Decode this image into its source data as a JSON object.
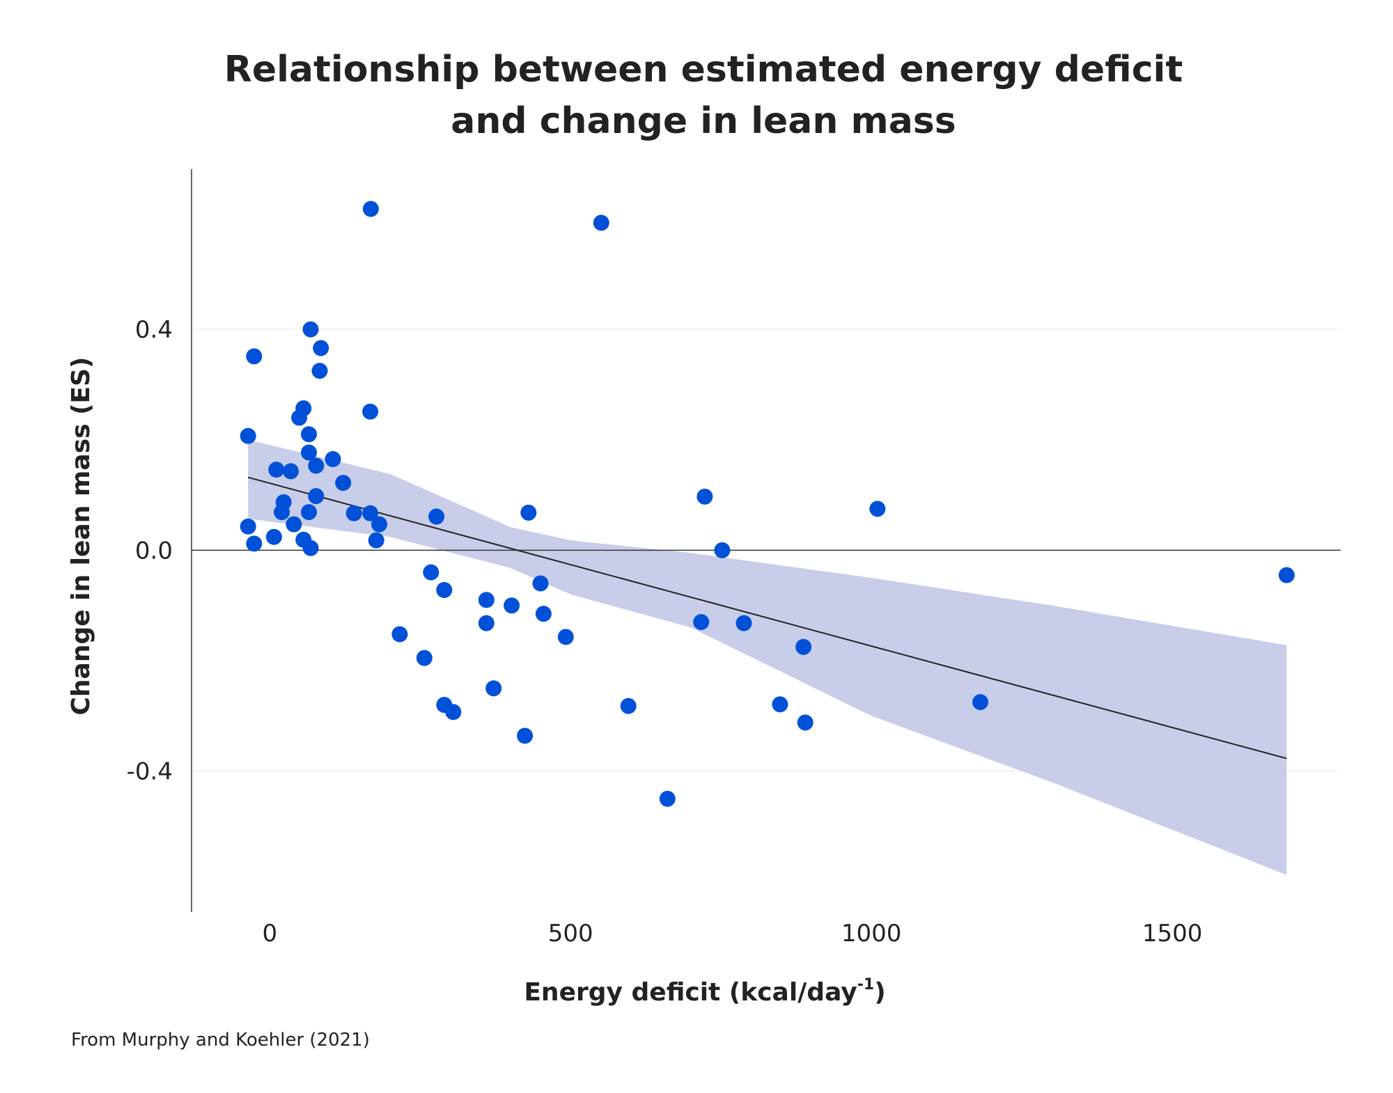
{
  "chart_data": {
    "type": "scatter",
    "title_line1": "Relationship between estimated energy deficit",
    "title_line2": "and change in lean mass",
    "xlabel": "Energy deficit (kcal/day",
    "xlabel_sup": "-1",
    "xlabel_close": ")",
    "ylabel": "Change in lean mass (ES)",
    "source": "From Murphy and Koehler (2021)",
    "xlim": [
      -130,
      1780
    ],
    "ylim": [
      -0.655,
      0.69
    ],
    "x_ticks": [
      0,
      500,
      1000,
      1500
    ],
    "x_tick_labels": [
      "0",
      "500",
      "1000",
      "1500"
    ],
    "y_ticks": [
      0.4,
      0.0,
      -0.4
    ],
    "y_tick_labels": [
      "0.4",
      "0.0",
      "-0.4"
    ],
    "grid": "horizontal",
    "colors": {
      "points": "#0050d8",
      "band": "#c8cdea",
      "line": "#222222",
      "axis": "#333333",
      "grid": "#eeeeee"
    },
    "regression": {
      "x": [
        -36,
        1690
      ],
      "y": [
        0.132,
        -0.377
      ]
    },
    "confidence_band": {
      "x": [
        -36,
        200,
        400,
        500,
        700,
        1000,
        1300,
        1690
      ],
      "upper": [
        0.2,
        0.138,
        0.042,
        0.018,
        -0.005,
        -0.05,
        -0.1,
        -0.172
      ],
      "lower": [
        0.057,
        0.024,
        -0.032,
        -0.08,
        -0.14,
        -0.3,
        -0.42,
        -0.588
      ]
    },
    "points": [
      {
        "x": 168,
        "y": 0.618
      },
      {
        "x": 551,
        "y": 0.593
      },
      {
        "x": 68,
        "y": 0.4
      },
      {
        "x": 85,
        "y": 0.366
      },
      {
        "x": -26,
        "y": 0.351
      },
      {
        "x": 83,
        "y": 0.325
      },
      {
        "x": 56,
        "y": 0.257
      },
      {
        "x": 167,
        "y": 0.251
      },
      {
        "x": 49,
        "y": 0.24
      },
      {
        "x": 65,
        "y": 0.21
      },
      {
        "x": -36,
        "y": 0.207
      },
      {
        "x": 65,
        "y": 0.177
      },
      {
        "x": 105,
        "y": 0.165
      },
      {
        "x": 77,
        "y": 0.153
      },
      {
        "x": 11,
        "y": 0.146
      },
      {
        "x": 35,
        "y": 0.143
      },
      {
        "x": 122,
        "y": 0.122
      },
      {
        "x": 77,
        "y": 0.098
      },
      {
        "x": 23,
        "y": 0.087
      },
      {
        "x": 20,
        "y": 0.069
      },
      {
        "x": 65,
        "y": 0.069
      },
      {
        "x": 140,
        "y": 0.067
      },
      {
        "x": 167,
        "y": 0.067
      },
      {
        "x": 430,
        "y": 0.068
      },
      {
        "x": 277,
        "y": 0.061
      },
      {
        "x": 182,
        "y": 0.047
      },
      {
        "x": 40,
        "y": 0.047
      },
      {
        "x": -36,
        "y": 0.043
      },
      {
        "x": 7,
        "y": 0.024
      },
      {
        "x": 56,
        "y": 0.019
      },
      {
        "x": 177,
        "y": 0.018
      },
      {
        "x": -26,
        "y": 0.012
      },
      {
        "x": 68,
        "y": 0.004
      },
      {
        "x": 723,
        "y": 0.097
      },
      {
        "x": 1010,
        "y": 0.075
      },
      {
        "x": 752,
        "y": 0.0
      },
      {
        "x": 1690,
        "y": -0.045
      },
      {
        "x": 268,
        "y": -0.04
      },
      {
        "x": 450,
        "y": -0.06
      },
      {
        "x": 290,
        "y": -0.072
      },
      {
        "x": 360,
        "y": -0.09
      },
      {
        "x": 402,
        "y": -0.1
      },
      {
        "x": 455,
        "y": -0.115
      },
      {
        "x": 360,
        "y": -0.132
      },
      {
        "x": 717,
        "y": -0.13
      },
      {
        "x": 788,
        "y": -0.132
      },
      {
        "x": 216,
        "y": -0.152
      },
      {
        "x": 492,
        "y": -0.157
      },
      {
        "x": 887,
        "y": -0.175
      },
      {
        "x": 257,
        "y": -0.195
      },
      {
        "x": 372,
        "y": -0.25
      },
      {
        "x": 290,
        "y": -0.28
      },
      {
        "x": 305,
        "y": -0.293
      },
      {
        "x": 596,
        "y": -0.282
      },
      {
        "x": 848,
        "y": -0.279
      },
      {
        "x": 1181,
        "y": -0.275
      },
      {
        "x": 890,
        "y": -0.312
      },
      {
        "x": 424,
        "y": -0.336
      },
      {
        "x": 661,
        "y": -0.45
      }
    ]
  }
}
